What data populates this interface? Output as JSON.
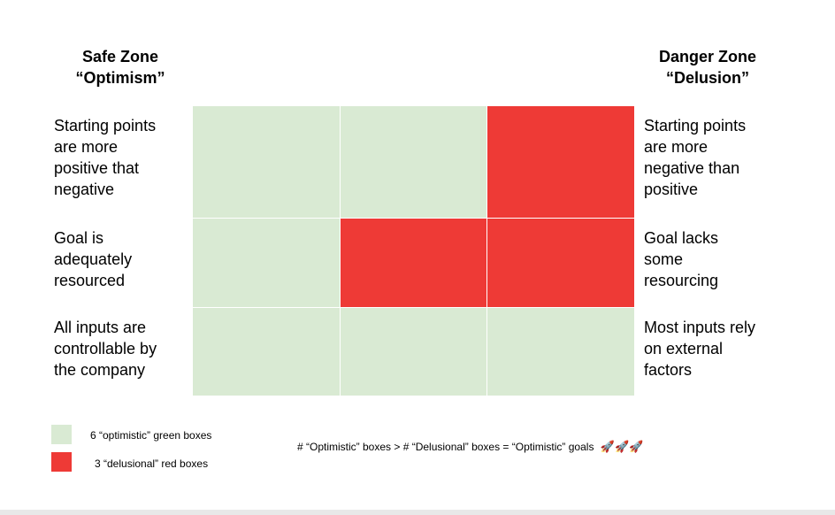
{
  "headers": {
    "safe": {
      "line1": "Safe Zone",
      "line2": "“Optimism”"
    },
    "danger": {
      "line1": "Danger Zone",
      "line2": "“Delusion”"
    }
  },
  "rows": [
    {
      "left": "Starting points\nare more\npositive that\nnegative",
      "right": "Starting points\nare more\nnegative than\npositive"
    },
    {
      "left": "Goal is\nadequately\nresourced",
      "right": "Goal lacks\nsome\nresourcing"
    },
    {
      "left": "All inputs are\ncontrollable by\nthe company",
      "right": "Most inputs rely\non external\nfactors"
    }
  ],
  "grid": [
    [
      "green",
      "green",
      "red"
    ],
    [
      "green",
      "red",
      "red"
    ],
    [
      "green",
      "green",
      "green"
    ]
  ],
  "colors": {
    "green": "#d9ead3",
    "red": "#ee3a36"
  },
  "legend": {
    "green_label": "6 “optimistic” green boxes",
    "red_label": "3 “delusional” red boxes"
  },
  "summary": {
    "text": "# “Optimistic” boxes > # “Delusional” boxes = “Optimistic” goals",
    "emoji": "🚀🚀🚀"
  }
}
